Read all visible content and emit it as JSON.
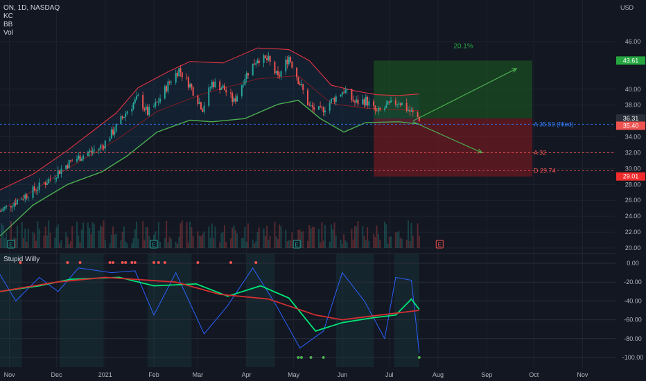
{
  "header": {
    "symbol_line": "ON, 1D, NASDAQ",
    "indicators": [
      "KC",
      "BB",
      "Vol"
    ],
    "currency": "USD"
  },
  "oscillator": {
    "name": "Stupid Willy"
  },
  "chart_data": [
    {
      "type": "candlestick",
      "title": "ON, 1D, NASDAQ",
      "ylim": [
        20,
        47
      ],
      "y_ticks": [
        "20.00",
        "22.00",
        "24.00",
        "26.00",
        "28.00",
        "30.00",
        "32.00",
        "34.00",
        "38.00",
        "40.00",
        "46.00"
      ],
      "x_ticks": [
        "Nov",
        "Dec",
        "2021",
        "Feb",
        "Mar",
        "Apr",
        "May",
        "Jun",
        "Jul",
        "Aug",
        "Sep",
        "Oct",
        "Nov"
      ],
      "x_tick_dates": [
        "2020-11-01",
        "2020-12-01",
        "2021-01-01",
        "2021-02-01",
        "2021-03-01",
        "2021-04-01",
        "2021-05-01",
        "2021-06-01",
        "2021-07-01",
        "2021-08-01",
        "2021-09-01",
        "2021-10-01",
        "2021-11-01"
      ],
      "x_range": [
        "2020-10-26",
        "2021-11-22"
      ],
      "close_path": [
        {
          "date": "2020-10-26",
          "close": 24.6
        },
        {
          "date": "2020-11-05",
          "close": 25.9
        },
        {
          "date": "2020-11-16",
          "close": 27.2
        },
        {
          "date": "2020-11-27",
          "close": 28.7
        },
        {
          "date": "2020-12-08",
          "close": 30.6
        },
        {
          "date": "2020-12-17",
          "close": 31.6
        },
        {
          "date": "2020-12-30",
          "close": 32.8
        },
        {
          "date": "2021-01-08",
          "close": 35.2
        },
        {
          "date": "2021-01-15",
          "close": 37.3
        },
        {
          "date": "2021-01-22",
          "close": 38.9
        },
        {
          "date": "2021-01-28",
          "close": 37.0
        },
        {
          "date": "2021-02-03",
          "close": 38.2
        },
        {
          "date": "2021-02-10",
          "close": 40.6
        },
        {
          "date": "2021-02-17",
          "close": 42.5
        },
        {
          "date": "2021-02-24",
          "close": 40.5
        },
        {
          "date": "2021-03-04",
          "close": 37.6
        },
        {
          "date": "2021-03-10",
          "close": 40.8
        },
        {
          "date": "2021-03-17",
          "close": 40.2
        },
        {
          "date": "2021-03-24",
          "close": 38.4
        },
        {
          "date": "2021-03-31",
          "close": 41.6
        },
        {
          "date": "2021-04-08",
          "close": 43.9
        },
        {
          "date": "2021-04-15",
          "close": 43.6
        },
        {
          "date": "2021-04-21",
          "close": 41.4
        },
        {
          "date": "2021-04-28",
          "close": 44.1
        },
        {
          "date": "2021-05-04",
          "close": 41.2
        },
        {
          "date": "2021-05-11",
          "close": 37.8
        },
        {
          "date": "2021-05-18",
          "close": 37.2
        },
        {
          "date": "2021-05-25",
          "close": 38.5
        },
        {
          "date": "2021-06-02",
          "close": 39.9
        },
        {
          "date": "2021-06-09",
          "close": 38.3
        },
        {
          "date": "2021-06-16",
          "close": 38.6
        },
        {
          "date": "2021-06-23",
          "close": 37.0
        },
        {
          "date": "2021-06-30",
          "close": 37.9
        },
        {
          "date": "2021-07-07",
          "close": 38.5
        },
        {
          "date": "2021-07-14",
          "close": 37.2
        },
        {
          "date": "2021-07-20",
          "close": 36.31
        }
      ],
      "upper_band_path": [
        {
          "date": "2020-10-26",
          "value": 27.3
        },
        {
          "date": "2020-11-16",
          "value": 29.3
        },
        {
          "date": "2020-12-08",
          "value": 32.3
        },
        {
          "date": "2021-01-08",
          "value": 37.0
        },
        {
          "date": "2021-01-22",
          "value": 40.2
        },
        {
          "date": "2021-02-10",
          "value": 42.2
        },
        {
          "date": "2021-02-24",
          "value": 43.5
        },
        {
          "date": "2021-03-17",
          "value": 43.3
        },
        {
          "date": "2021-04-08",
          "value": 45.2
        },
        {
          "date": "2021-04-28",
          "value": 45.0
        },
        {
          "date": "2021-05-11",
          "value": 43.6
        },
        {
          "date": "2021-05-25",
          "value": 40.5
        },
        {
          "date": "2021-06-09",
          "value": 39.8
        },
        {
          "date": "2021-06-23",
          "value": 39.3
        },
        {
          "date": "2021-07-07",
          "value": 39.2
        },
        {
          "date": "2021-07-20",
          "value": 39.4
        }
      ],
      "lower_band_path": [
        {
          "date": "2020-10-26",
          "value": 21.5
        },
        {
          "date": "2020-11-16",
          "value": 25.4
        },
        {
          "date": "2020-12-08",
          "value": 28.0
        },
        {
          "date": "2020-12-30",
          "value": 29.6
        },
        {
          "date": "2021-01-15",
          "value": 31.6
        },
        {
          "date": "2021-02-03",
          "value": 34.6
        },
        {
          "date": "2021-02-24",
          "value": 36.1
        },
        {
          "date": "2021-03-10",
          "value": 35.9
        },
        {
          "date": "2021-03-31",
          "value": 36.3
        },
        {
          "date": "2021-04-21",
          "value": 38.1
        },
        {
          "date": "2021-05-04",
          "value": 38.6
        },
        {
          "date": "2021-05-18",
          "value": 36.3
        },
        {
          "date": "2021-06-02",
          "value": 34.6
        },
        {
          "date": "2021-06-16",
          "value": 35.8
        },
        {
          "date": "2021-07-07",
          "value": 35.9
        },
        {
          "date": "2021-07-20",
          "value": 35.6
        }
      ],
      "basis_path": [
        {
          "date": "2020-10-26",
          "value": 24.7
        },
        {
          "date": "2020-11-16",
          "value": 27.2
        },
        {
          "date": "2020-12-08",
          "value": 30.0
        },
        {
          "date": "2021-01-08",
          "value": 33.6
        },
        {
          "date": "2021-02-03",
          "value": 37.2
        },
        {
          "date": "2021-03-04",
          "value": 39.4
        },
        {
          "date": "2021-04-08",
          "value": 41.3
        },
        {
          "date": "2021-05-04",
          "value": 41.7
        },
        {
          "date": "2021-05-25",
          "value": 38.2
        },
        {
          "date": "2021-06-16",
          "value": 37.6
        },
        {
          "date": "2021-07-20",
          "value": 37.3
        }
      ],
      "trade_box": {
        "start_date": "2021-06-21",
        "end_date": "2021-09-30",
        "target": 43.61,
        "entry": 36.31,
        "stop": 29.01,
        "label_target": "20.1%",
        "projection_up": {
          "from": {
            "date": "2021-07-16",
            "value": 36.0
          },
          "to": {
            "date": "2021-09-20",
            "value": 42.6
          }
        },
        "projection_down": {
          "from": {
            "date": "2021-07-16",
            "value": 35.9
          },
          "to": {
            "date": "2021-08-29",
            "value": 32.0
          }
        }
      },
      "levels": [
        {
          "label": "A 35.59 (filled)",
          "value": 35.59,
          "color": "#3179f5"
        },
        {
          "label": "A 32",
          "value": 32.0,
          "color": "#ef5350"
        },
        {
          "label": "D 29.74",
          "value": 29.74,
          "color": "#ef5350"
        }
      ],
      "price_tags": [
        {
          "text": "43.61",
          "value": 43.61,
          "color": "#26a641"
        },
        {
          "text": "36.31",
          "value": 36.31,
          "color": "#2a2e39"
        },
        {
          "text": "35.40",
          "value": 35.4,
          "color": "#ef5350"
        },
        {
          "text": "29.01",
          "value": 29.01,
          "color": "#ef2b2b"
        }
      ],
      "earnings_markers": [
        {
          "date": "2020-11-02",
          "label": "E"
        },
        {
          "date": "2021-02-01",
          "label": "E"
        },
        {
          "date": "2021-05-03",
          "label": "E"
        },
        {
          "date": "2021-08-02",
          "label": "E"
        }
      ],
      "colors": {
        "up": "#26a69a",
        "down": "#ef5350",
        "bands": "#f23645",
        "keltner": "#4caf50",
        "target_zone": "#1b5e20",
        "stop_zone": "#801922"
      }
    },
    {
      "type": "line",
      "title": "Stupid Willy",
      "ylim": [
        -105,
        5
      ],
      "y_ticks": [
        "0.00",
        "-20.00",
        "-40.00",
        "-60.00",
        "-80.00",
        "-100.00"
      ],
      "series": [
        {
          "color": "#2962ff",
          "points": [
            {
              "date": "2020-10-26",
              "value": -12
            },
            {
              "date": "2020-11-05",
              "value": -40
            },
            {
              "date": "2020-11-20",
              "value": -15
            },
            {
              "date": "2020-12-02",
              "value": -30
            },
            {
              "date": "2020-12-15",
              "value": -5
            },
            {
              "date": "2021-01-05",
              "value": -10
            },
            {
              "date": "2021-01-20",
              "value": -8
            },
            {
              "date": "2021-02-01",
              "value": -55
            },
            {
              "date": "2021-02-15",
              "value": -10
            },
            {
              "date": "2021-03-05",
              "value": -75
            },
            {
              "date": "2021-03-20",
              "value": -45
            },
            {
              "date": "2021-04-05",
              "value": -5
            },
            {
              "date": "2021-04-20",
              "value": -45
            },
            {
              "date": "2021-05-05",
              "value": -90
            },
            {
              "date": "2021-05-20",
              "value": -72
            },
            {
              "date": "2021-06-01",
              "value": -10
            },
            {
              "date": "2021-06-15",
              "value": -40
            },
            {
              "date": "2021-06-28",
              "value": -80
            },
            {
              "date": "2021-07-05",
              "value": -15
            },
            {
              "date": "2021-07-15",
              "value": -18
            },
            {
              "date": "2021-07-20",
              "value": -95
            }
          ]
        },
        {
          "color": "#00e676",
          "points": [
            {
              "date": "2020-10-26",
              "value": -30
            },
            {
              "date": "2020-11-20",
              "value": -24
            },
            {
              "date": "2020-12-10",
              "value": -17
            },
            {
              "date": "2021-01-10",
              "value": -15
            },
            {
              "date": "2021-02-01",
              "value": -24
            },
            {
              "date": "2021-02-28",
              "value": -22
            },
            {
              "date": "2021-03-20",
              "value": -35
            },
            {
              "date": "2021-04-10",
              "value": -24
            },
            {
              "date": "2021-04-28",
              "value": -37
            },
            {
              "date": "2021-05-15",
              "value": -72
            },
            {
              "date": "2021-06-01",
              "value": -63
            },
            {
              "date": "2021-06-20",
              "value": -58
            },
            {
              "date": "2021-07-05",
              "value": -55
            },
            {
              "date": "2021-07-15",
              "value": -38
            },
            {
              "date": "2021-07-20",
              "value": -49
            }
          ]
        },
        {
          "color": "#d32f2f",
          "points": [
            {
              "date": "2020-10-26",
              "value": -30
            },
            {
              "date": "2020-12-01",
              "value": -20
            },
            {
              "date": "2021-01-01",
              "value": -15
            },
            {
              "date": "2021-02-15",
              "value": -20
            },
            {
              "date": "2021-03-15",
              "value": -33
            },
            {
              "date": "2021-04-15",
              "value": -38
            },
            {
              "date": "2021-05-15",
              "value": -55
            },
            {
              "date": "2021-06-01",
              "value": -60
            },
            {
              "date": "2021-06-20",
              "value": -56
            },
            {
              "date": "2021-07-20",
              "value": -50
            }
          ]
        }
      ],
      "shaded_periods": [
        [
          "2020-10-26",
          "2020-11-09"
        ],
        [
          "2020-12-03",
          "2020-12-31"
        ],
        [
          "2021-01-28",
          "2021-02-25"
        ],
        [
          "2021-04-01",
          "2021-04-19"
        ],
        [
          "2021-05-28",
          "2021-06-21"
        ],
        [
          "2021-07-04",
          "2021-07-20"
        ]
      ],
      "dot_markers_top": [
        "2020-11-08",
        "2020-12-08",
        "2020-12-16",
        "2021-01-04",
        "2021-01-06",
        "2021-01-12",
        "2021-01-14",
        "2021-01-18",
        "2021-01-20",
        "2021-02-01",
        "2021-02-04",
        "2021-02-08",
        "2021-03-01",
        "2021-03-22",
        "2021-04-07"
      ],
      "dot_markers_bottom": [
        "2021-05-04",
        "2021-05-06",
        "2021-05-12",
        "2021-05-20",
        "2021-07-20"
      ]
    }
  ]
}
